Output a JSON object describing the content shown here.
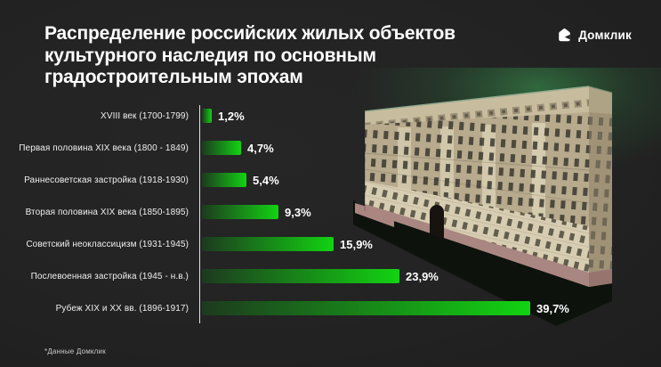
{
  "header": {
    "title": "Распределение российских жилых объектов культурного наследия по основным градостроительным эпохам",
    "brand": "Домклик",
    "brand_icon": "domclick-house-icon"
  },
  "colors": {
    "background": "#232323",
    "bar_gradient_start": "#1d3a1f",
    "bar_gradient_end": "#12d312",
    "axis_line": "#e3e3e3",
    "text": "#ffffff",
    "glow_green": "#3fae57"
  },
  "chart_data": {
    "type": "bar",
    "orientation": "horizontal",
    "title": "Распределение российских жилых объектов культурного наследия по основным градостроительным эпохам",
    "categories": [
      "XVIII век (1700-1799)",
      "Первая половина XIX века (1800 - 1849)",
      "Раннесоветская застройка (1918-1930)",
      "Вторая половина XIX века (1850-1895)",
      "Советский неоклассицизм (1931-1945)",
      "Послевоенная застройка (1945 - н.в.)",
      "Рубеж XIX и XX вв. (1896-1917)"
    ],
    "values": [
      1.2,
      4.7,
      5.4,
      9.3,
      15.9,
      23.9,
      39.7
    ],
    "value_labels": [
      "1,2%",
      "4,7%",
      "5,4%",
      "9,3%",
      "15,9%",
      "23,9%",
      "39,7%"
    ],
    "unit": "%",
    "xlim": [
      0,
      40
    ],
    "grid": false,
    "legend": false,
    "illustration": "soviet-apartment-building-3d-render"
  },
  "footnote": "*Данные Домклик"
}
